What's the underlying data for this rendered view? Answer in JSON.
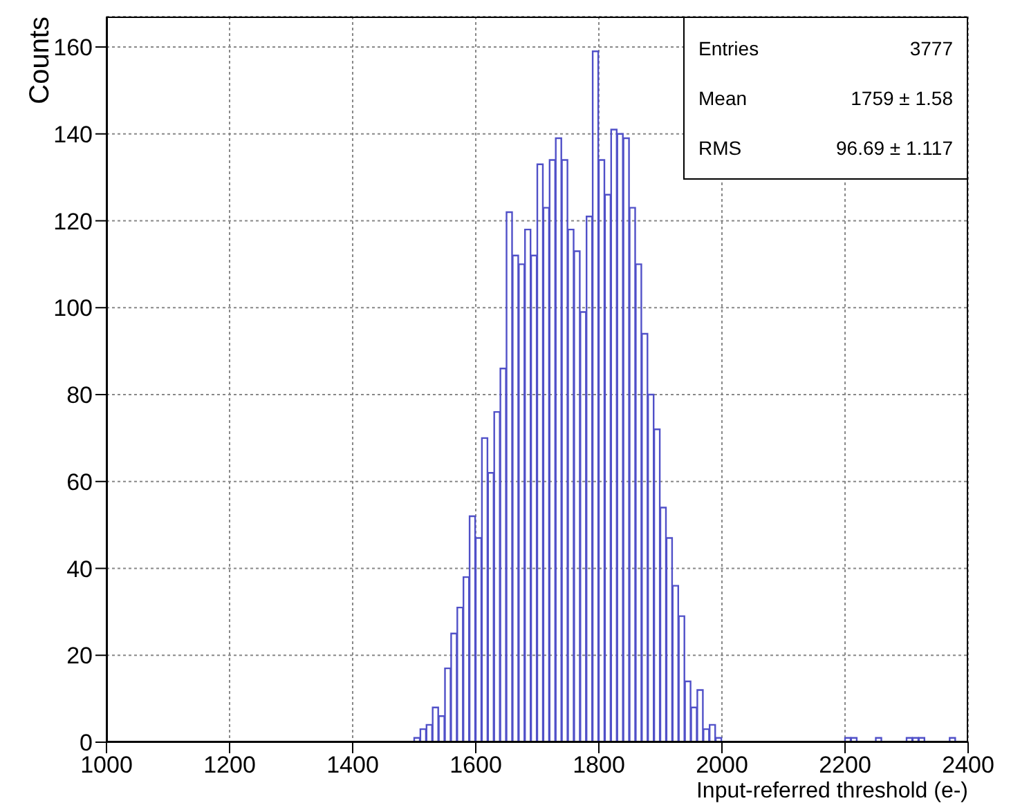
{
  "chart_data": {
    "type": "histogram",
    "xlabel": "Input-referred threshold (e-)",
    "ylabel": "Counts",
    "color": "#5050c8",
    "bins": [
      1000,
      1010,
      1020,
      1030,
      1040,
      1050,
      1060,
      1070,
      1080,
      1090,
      1100,
      1110,
      1120,
      1130,
      1140,
      1150,
      1160,
      1170,
      1180,
      1190,
      1200,
      1210,
      1220,
      1230,
      1240,
      1250,
      1260,
      1270,
      1280,
      1290,
      1300,
      1310,
      1320,
      1330,
      1340,
      1350,
      1360,
      1370,
      1380,
      1390,
      1400,
      1410,
      1420,
      1430,
      1440,
      1450,
      1460,
      1470,
      1480,
      1490,
      1500,
      1510,
      1520,
      1530,
      1540,
      1550,
      1560,
      1570,
      1580,
      1590,
      1600,
      1610,
      1620,
      1630,
      1640,
      1650,
      1660,
      1670,
      1680,
      1690,
      1700,
      1710,
      1720,
      1730,
      1740,
      1750,
      1760,
      1770,
      1780,
      1790,
      1800,
      1810,
      1820,
      1830,
      1840,
      1850,
      1860,
      1870,
      1880,
      1890,
      1900,
      1910,
      1920,
      1930,
      1940,
      1950,
      1960,
      1970,
      1980,
      1990,
      2000,
      2010,
      2020,
      2030,
      2040,
      2050,
      2060,
      2070,
      2080,
      2090,
      2100,
      2110,
      2120,
      2130,
      2140,
      2150,
      2160,
      2170,
      2180,
      2190,
      2200,
      2210,
      2220,
      2230,
      2240,
      2250,
      2260,
      2270,
      2280,
      2290,
      2300,
      2310,
      2320,
      2330,
      2340,
      2350,
      2360,
      2370,
      2380,
      2390,
      2400
    ],
    "values": [
      0,
      0,
      0,
      0,
      0,
      0,
      0,
      0,
      0,
      0,
      0,
      0,
      0,
      0,
      0,
      0,
      0,
      0,
      0,
      0,
      0,
      0,
      0,
      0,
      0,
      0,
      0,
      0,
      0,
      0,
      0,
      0,
      0,
      0,
      0,
      0,
      0,
      0,
      0,
      0,
      0,
      0,
      0,
      0,
      0,
      0,
      0,
      0,
      0,
      0,
      1,
      3,
      4,
      8,
      6,
      17,
      25,
      31,
      38,
      52,
      47,
      70,
      62,
      76,
      86,
      122,
      112,
      110,
      118,
      112,
      133,
      123,
      134,
      139,
      134,
      118,
      113,
      99,
      121,
      159,
      134,
      126,
      141,
      140,
      139,
      123,
      110,
      94,
      80,
      72,
      54,
      47,
      36,
      29,
      14,
      8,
      12,
      3,
      4,
      1,
      0,
      0,
      0,
      0,
      0,
      0,
      0,
      0,
      0,
      0,
      0,
      0,
      0,
      0,
      0,
      0,
      0,
      0,
      0,
      0,
      1,
      1,
      0,
      0,
      0,
      1,
      0,
      0,
      0,
      0,
      1,
      1,
      1,
      0,
      0,
      0,
      0,
      1,
      0,
      0
    ],
    "xlim": [
      1000,
      2400
    ],
    "xticks": [
      1000,
      1200,
      1400,
      1600,
      1800,
      2000,
      2200,
      2400
    ],
    "ylim": [
      0,
      167
    ],
    "yticks": [
      0,
      20,
      40,
      60,
      80,
      100,
      120,
      140,
      160
    ],
    "grid": true,
    "annotations": [
      "Entries",
      "3777",
      "Mean",
      "1759 ± 1.58",
      "RMS",
      "96.69 ± 1.117"
    ]
  }
}
